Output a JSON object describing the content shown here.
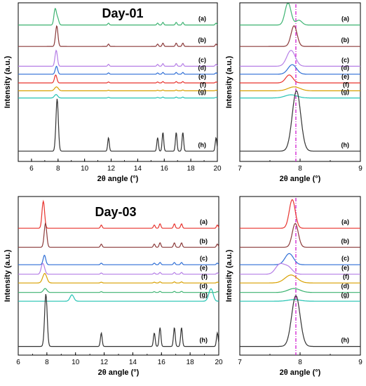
{
  "chart_data": [
    {
      "type": "line",
      "title": "Day-01",
      "xlabel": "2θ angle (°)",
      "ylabel": "Intensity (a.u.)",
      "xlim": [
        5,
        20
      ],
      "xticks": [
        6,
        8,
        10,
        12,
        14,
        16,
        18,
        20
      ],
      "peaks": [
        7.9,
        11.8,
        15.5,
        15.9,
        16.9,
        17.4,
        19.9
      ],
      "series": [
        {
          "name": "(a)",
          "color": "#3cb371",
          "offset": 0.86,
          "profile": {
            "center": 7.78,
            "height": 0.1,
            "width": 0.09,
            "minor": 0.012,
            "extra": [
              [
                7.97,
                0.04
              ]
            ]
          }
        },
        {
          "name": "(b)",
          "color": "#8b3a3a",
          "offset": 0.725,
          "profile": {
            "center": 7.9,
            "height": 0.13,
            "width": 0.09,
            "minor": 0.015
          }
        },
        {
          "name": "(c)",
          "color": "#b57ee6",
          "offset": 0.6,
          "profile": {
            "center": 7.86,
            "height": 0.1,
            "width": 0.09,
            "minor": 0.012
          }
        },
        {
          "name": "(d)",
          "color": "#2f6fd6",
          "offset": 0.55,
          "profile": {
            "center": 7.88,
            "height": 0.05,
            "width": 0.09,
            "minor": 0.008
          }
        },
        {
          "name": "(e)",
          "color": "#e8332e",
          "offset": 0.495,
          "profile": {
            "center": 7.82,
            "height": 0.05,
            "width": 0.09,
            "minor": 0.006
          }
        },
        {
          "name": "(f)",
          "color": "#d8a000",
          "offset": 0.445,
          "profile": {
            "center": 7.88,
            "height": 0.025,
            "width": 0.14,
            "minor": 0.004
          }
        },
        {
          "name": "(g)",
          "color": "#25c3b3",
          "offset": 0.4,
          "profile": {
            "center": 7.85,
            "height": 0.022,
            "width": 0.12,
            "minor": 0.004
          }
        },
        {
          "name": "(h)",
          "color": "#333333",
          "offset": 0.065,
          "profile": {
            "center": 7.93,
            "height": 0.33,
            "width": 0.09,
            "minor": 0.085
          }
        }
      ]
    },
    {
      "type": "line",
      "title": "",
      "xlabel": "2θ angle (°)",
      "ylabel": "Intensity (a.u.)",
      "xlim": [
        7,
        9
      ],
      "xticks": [
        7,
        8,
        9
      ],
      "reference_line": 7.93,
      "series": [
        {
          "name": "(a)",
          "color": "#3cb371",
          "offset": 0.86,
          "profile": {
            "center": 7.8,
            "height": 0.14,
            "width": 0.05,
            "extra": [
              [
                7.98,
                0.03
              ]
            ]
          }
        },
        {
          "name": "(b)",
          "color": "#8b3a3a",
          "offset": 0.725,
          "profile": {
            "center": 7.9,
            "height": 0.13,
            "width": 0.05
          }
        },
        {
          "name": "(c)",
          "color": "#b57ee6",
          "offset": 0.6,
          "profile": {
            "center": 7.85,
            "height": 0.1,
            "width": 0.07
          }
        },
        {
          "name": "(d)",
          "color": "#2f6fd6",
          "offset": 0.55,
          "profile": {
            "center": 7.87,
            "height": 0.06,
            "width": 0.07
          }
        },
        {
          "name": "(e)",
          "color": "#e8332e",
          "offset": 0.495,
          "profile": {
            "center": 7.82,
            "height": 0.05,
            "width": 0.06
          }
        },
        {
          "name": "(f)",
          "color": "#d8a000",
          "offset": 0.445,
          "profile": {
            "center": 7.9,
            "height": 0.025,
            "width": 0.1
          }
        },
        {
          "name": "(g)",
          "color": "#25c3b3",
          "offset": 0.4,
          "profile": {
            "center": 7.85,
            "height": 0.02,
            "width": 0.1
          }
        },
        {
          "name": "(h)",
          "color": "#333333",
          "offset": 0.065,
          "profile": {
            "center": 7.94,
            "height": 0.38,
            "width": 0.07
          }
        }
      ]
    },
    {
      "type": "line",
      "title": "Day-03",
      "xlabel": "2θ angle (°)",
      "ylabel": "Intensity (a.u.)",
      "xlim": [
        6,
        20
      ],
      "xticks": [
        6,
        8,
        10,
        12,
        14,
        16,
        18,
        20
      ],
      "peaks": [
        7.9,
        11.8,
        15.5,
        15.9,
        16.9,
        17.4,
        19.9
      ],
      "series": [
        {
          "name": "(a)",
          "color": "#e8332e",
          "offset": 0.8,
          "profile": {
            "center": 7.75,
            "height": 0.17,
            "width": 0.09,
            "minor": 0.02
          }
        },
        {
          "name": "(b)",
          "color": "#8b3a3a",
          "offset": 0.68,
          "profile": {
            "center": 7.9,
            "height": 0.15,
            "width": 0.09,
            "minor": 0.02
          }
        },
        {
          "name": "(c)",
          "color": "#2f6fd6",
          "offset": 0.57,
          "profile": {
            "center": 7.83,
            "height": 0.06,
            "width": 0.09,
            "minor": 0.01
          }
        },
        {
          "name": "(e)",
          "color": "#b57ee6",
          "offset": 0.51,
          "profile": {
            "center": 7.68,
            "height": 0.05,
            "width": 0.1,
            "minor": 0.008,
            "extra": [
              [
                7.8,
                0.03
              ]
            ]
          }
        },
        {
          "name": "(f)",
          "color": "#d8a000",
          "offset": 0.455,
          "profile": {
            "center": 7.85,
            "height": 0.06,
            "width": 0.14,
            "minor": 0.005
          }
        },
        {
          "name": "(d)",
          "color": "#3cb371",
          "offset": 0.395,
          "profile": {
            "center": 7.88,
            "height": 0.025,
            "width": 0.12,
            "minor": 0.005
          }
        },
        {
          "name": "(g)",
          "color": "#25c3b3",
          "offset": 0.34,
          "profile": {
            "center": 9.75,
            "height": 0.04,
            "width": 0.13,
            "minor": 0.0,
            "extra": [
              [
                19.5,
                0.06
              ],
              [
                19.35,
                0.03
              ]
            ]
          }
        },
        {
          "name": "(h)",
          "color": "#333333",
          "offset": 0.055,
          "profile": {
            "center": 7.93,
            "height": 0.33,
            "width": 0.09,
            "minor": 0.085
          }
        }
      ]
    },
    {
      "type": "line",
      "title": "",
      "xlabel": "2θ angle (°)",
      "ylabel": "Intensity (a.u.)",
      "xlim": [
        7,
        9
      ],
      "xticks": [
        7,
        8,
        9
      ],
      "reference_line": 7.93,
      "series": [
        {
          "name": "(a)",
          "color": "#e8332e",
          "offset": 0.8,
          "profile": {
            "center": 7.87,
            "height": 0.18,
            "width": 0.05
          }
        },
        {
          "name": "(b)",
          "color": "#8b3a3a",
          "offset": 0.68,
          "profile": {
            "center": 7.92,
            "height": 0.15,
            "width": 0.05
          }
        },
        {
          "name": "(c)",
          "color": "#2f6fd6",
          "offset": 0.57,
          "profile": {
            "center": 7.82,
            "height": 0.07,
            "width": 0.07
          }
        },
        {
          "name": "(e)",
          "color": "#b57ee6",
          "offset": 0.51,
          "profile": {
            "center": 7.66,
            "height": 0.06,
            "width": 0.07,
            "extra": [
              [
                7.8,
                0.045
              ]
            ]
          }
        },
        {
          "name": "(f)",
          "color": "#d8a000",
          "offset": 0.455,
          "profile": {
            "center": 7.85,
            "height": 0.05,
            "width": 0.1
          }
        },
        {
          "name": "(d)",
          "color": "#3cb371",
          "offset": 0.395,
          "profile": {
            "center": 7.9,
            "height": 0.025,
            "width": 0.1
          }
        },
        {
          "name": "(g)",
          "color": "#25c3b3",
          "offset": 0.34,
          "profile": {
            "center": 7.9,
            "height": 0.01,
            "width": 0.1
          }
        },
        {
          "name": "(h)",
          "color": "#333333",
          "offset": 0.055,
          "profile": {
            "center": 7.93,
            "height": 0.32,
            "width": 0.07
          }
        }
      ]
    }
  ]
}
